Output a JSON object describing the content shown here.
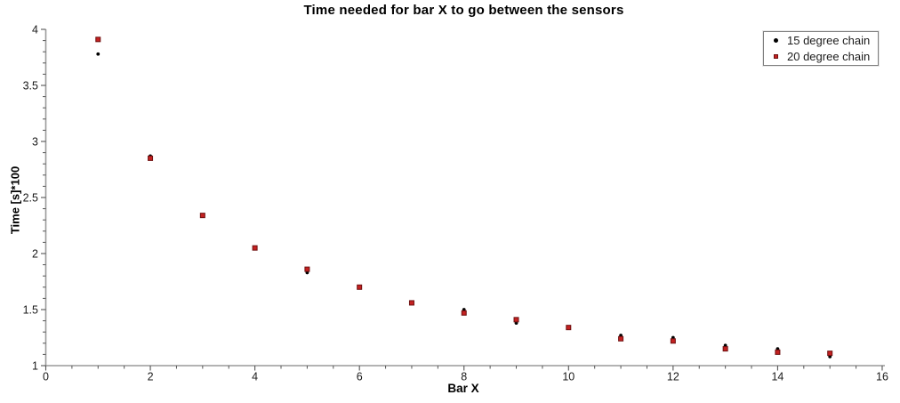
{
  "window": {
    "background": "#ffffff"
  },
  "chart_data": {
    "type": "scatter",
    "title": "Time needed for bar X to go between the sensors",
    "xlabel": "Bar X",
    "ylabel": "Time [s]*100",
    "xlim": [
      0,
      16
    ],
    "ylim": [
      1,
      4
    ],
    "x_major_ticks": [
      0,
      2,
      4,
      6,
      8,
      10,
      12,
      14,
      16
    ],
    "x_minor_step": 0.5,
    "y_major_ticks": [
      1,
      1.5,
      2,
      2.5,
      3,
      3.5,
      4
    ],
    "y_minor_step": 0.1,
    "grid": false,
    "legend_position": "top-right",
    "x": [
      1,
      2,
      3,
      4,
      5,
      6,
      7,
      8,
      9,
      10,
      11,
      12,
      13,
      14,
      15
    ],
    "series": [
      {
        "name": "15 degree chain",
        "marker": "circle",
        "color": "#000000",
        "values": [
          3.78,
          2.87,
          2.34,
          2.05,
          1.83,
          1.7,
          1.56,
          1.5,
          1.38,
          1.34,
          1.27,
          1.25,
          1.18,
          1.15,
          1.08
        ]
      },
      {
        "name": "20 degree chain",
        "marker": "square",
        "color": "#c42121",
        "marker_edge_color": "#6e1111",
        "values": [
          3.91,
          2.85,
          2.34,
          2.05,
          1.86,
          1.7,
          1.56,
          1.47,
          1.41,
          1.34,
          1.24,
          1.22,
          1.15,
          1.12,
          1.11
        ]
      }
    ],
    "axis_color": "#9a9a9a",
    "tick_color": "#555555",
    "tick_label_color": "#1a1a1a"
  }
}
